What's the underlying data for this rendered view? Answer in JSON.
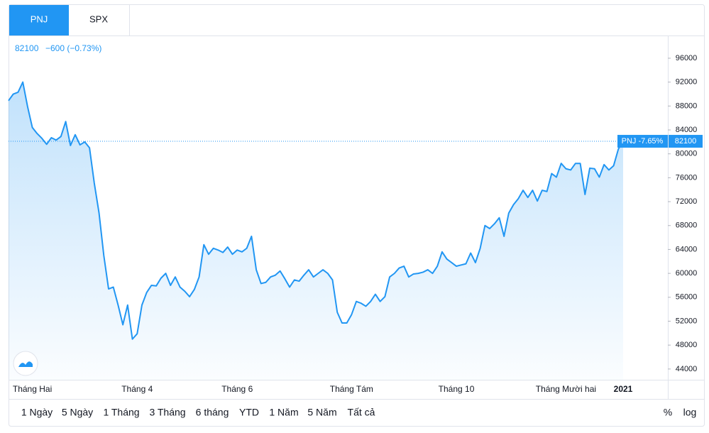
{
  "tabs": [
    "PNJ",
    "SPX"
  ],
  "chart_data": {
    "type": "line",
    "change_label": "−600 (−0.73%)",
    "price_tag": "PNJ -7.65%",
    "categories": [
      null,
      null,
      null,
      null,
      null,
      "Tháng Hai",
      null,
      null,
      null,
      null,
      null,
      null,
      null,
      null,
      null,
      null,
      null,
      null,
      null,
      null,
      null,
      null,
      null,
      null,
      null,
      null,
      null,
      "Tháng 4",
      null,
      null,
      null,
      null,
      null,
      null,
      null,
      null,
      null,
      null,
      null,
      null,
      null,
      null,
      null,
      null,
      null,
      null,
      null,
      null,
      "Tháng 6",
      null,
      null,
      null,
      null,
      null,
      null,
      null,
      null,
      null,
      null,
      null,
      null,
      null,
      null,
      null,
      null,
      null,
      null,
      null,
      null,
      null,
      null,
      null,
      "Tháng Tám",
      null,
      null,
      null,
      null,
      null,
      null,
      null,
      null,
      null,
      null,
      null,
      null,
      null,
      null,
      null,
      null,
      null,
      null,
      null,
      null,
      null,
      "Tháng 10",
      null,
      null,
      null,
      null,
      null,
      null,
      null,
      null,
      null,
      null,
      null,
      null,
      null,
      null,
      null,
      null,
      null,
      null,
      null,
      null,
      null,
      null,
      "Tháng Mười hai",
      null,
      null,
      null,
      null,
      null,
      null,
      null,
      null,
      null,
      null,
      null,
      "2021"
    ],
    "series": [
      {
        "name": "PNJ",
        "color": "#2196f3",
        "values": [
          88900,
          90000,
          90300,
          92000,
          87900,
          84400,
          83400,
          82600,
          81600,
          82700,
          82300,
          82900,
          85400,
          81400,
          83200,
          81500,
          82000,
          81000,
          75100,
          70100,
          63000,
          57400,
          57700,
          54700,
          51400,
          54700,
          49000,
          49900,
          54700,
          56800,
          58000,
          57900,
          59200,
          60000,
          58000,
          59400,
          57700,
          57000,
          56100,
          57300,
          59400,
          64800,
          63200,
          64200,
          63900,
          63500,
          64400,
          63200,
          63900,
          63600,
          64200,
          66200,
          60600,
          58300,
          58500,
          59400,
          59700,
          60400,
          59100,
          57700,
          58900,
          58700,
          59700,
          60600,
          59400,
          60000,
          60600,
          60000,
          58900,
          53500,
          51700,
          51700,
          53100,
          55300,
          55000,
          54500,
          55300,
          56500,
          55300,
          56100,
          59400,
          60000,
          60900,
          61200,
          59400,
          59900,
          60000,
          60200,
          60600,
          60000,
          61200,
          63600,
          62400,
          61800,
          61200,
          61400,
          61600,
          63400,
          61800,
          64200,
          68000,
          67500,
          68300,
          69300,
          66200,
          70100,
          71500,
          72500,
          73900,
          72700,
          73900,
          72100,
          73900,
          73700,
          76700,
          76100,
          78400,
          77500,
          77300,
          78400,
          78400,
          73200,
          77600,
          77500,
          76100,
          78200,
          77300,
          78000,
          80800,
          82100
        ]
      }
    ],
    "ylim": [
      42200,
      99800
    ],
    "yticks": [
      44000,
      48000,
      52000,
      56000,
      60000,
      64000,
      68000,
      72000,
      76000,
      80000,
      84000,
      88000,
      92000,
      96000
    ],
    "grid": false
  },
  "ranges": [
    "1 Ngày",
    "5 Ngày",
    "1 Tháng",
    "3 Tháng",
    "6 tháng",
    "YTD",
    "1 Năm",
    "5 Năm",
    "Tất cả"
  ],
  "scale_options": [
    "%",
    "log"
  ]
}
